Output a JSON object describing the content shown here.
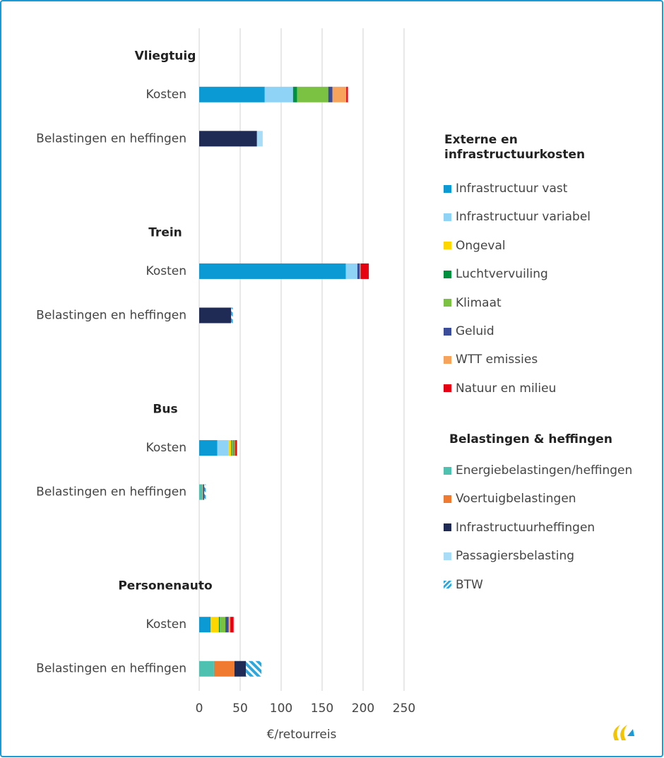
{
  "chart_data": {
    "type": "stacked-barh",
    "xlabel": "€/retourreis",
    "xlim": [
      0,
      250
    ],
    "xticks": [
      0,
      50,
      100,
      150,
      200,
      250
    ],
    "grid": true,
    "groups": [
      {
        "label": "Vliegtuig",
        "categories": [
          "Kosten",
          "Belastingen en heffingen"
        ]
      },
      {
        "label": "Trein",
        "categories": [
          "Kosten",
          "Belastingen en heffingen"
        ]
      },
      {
        "label": "Bus",
        "categories": [
          "Kosten",
          "Belastingen en heffingen"
        ]
      },
      {
        "label": "Personenauto",
        "categories": [
          "Kosten",
          "Belastingen en heffingen"
        ]
      }
    ],
    "series_groups": [
      {
        "title": "Externe en infrastructuurkosten",
        "series": [
          {
            "name": "Infrastructuur vast",
            "color": "#0c9ad4",
            "values": [
              80,
              null,
              179,
              null,
              22,
              null,
              14,
              null
            ]
          },
          {
            "name": "Infrastructuur variabel",
            "color": "#8fd3f7",
            "values": [
              34.5,
              null,
              14,
              null,
              14,
              null,
              0,
              null
            ]
          },
          {
            "name": "Ongeval",
            "color": "#ffd700",
            "values": [
              0,
              null,
              0,
              null,
              3,
              null,
              10,
              null
            ]
          },
          {
            "name": "Luchtvervuiling",
            "color": "#00913f",
            "values": [
              5,
              null,
              0,
              null,
              1,
              null,
              1,
              null
            ]
          },
          {
            "name": "Klimaat",
            "color": "#7cc242",
            "values": [
              38,
              null,
              0,
              null,
              2,
              null,
              7,
              null
            ]
          },
          {
            "name": "Geluid",
            "color": "#3b4c9b",
            "values": [
              5,
              null,
              3,
              null,
              1,
              null,
              4,
              null
            ]
          },
          {
            "name": "WTT emissies",
            "color": "#f7a35c",
            "values": [
              17,
              null,
              1,
              null,
              1,
              null,
              2,
              null
            ]
          },
          {
            "name": "Natuur en milieu",
            "color": "#e60012",
            "values": [
              2,
              null,
              10,
              null,
              2,
              null,
              4,
              null
            ]
          }
        ]
      },
      {
        "title": "Belastingen & heffingen",
        "series": [
          {
            "name": "Energiebelastingen/heffingen",
            "color": "#4fc1b0",
            "values": [
              null,
              0,
              null,
              0,
              null,
              4,
              null,
              18
            ]
          },
          {
            "name": "Voertuigbelastingen",
            "color": "#f07a30",
            "values": [
              null,
              0,
              null,
              0,
              null,
              1,
              null,
              25
            ]
          },
          {
            "name": "Infrastructuurheffingen",
            "color": "#1f2a55",
            "values": [
              null,
              70.5,
              null,
              39,
              null,
              1,
              null,
              14
            ]
          },
          {
            "name": "Passagiersbelasting",
            "color": "#a9ddf7",
            "values": [
              null,
              7,
              null,
              0,
              null,
              0,
              null,
              0
            ]
          },
          {
            "name": "BTW",
            "color": "#29a8e0",
            "pattern": "hatch",
            "values": [
              null,
              0,
              null,
              2,
              null,
              2,
              null,
              19
            ]
          }
        ]
      }
    ]
  }
}
